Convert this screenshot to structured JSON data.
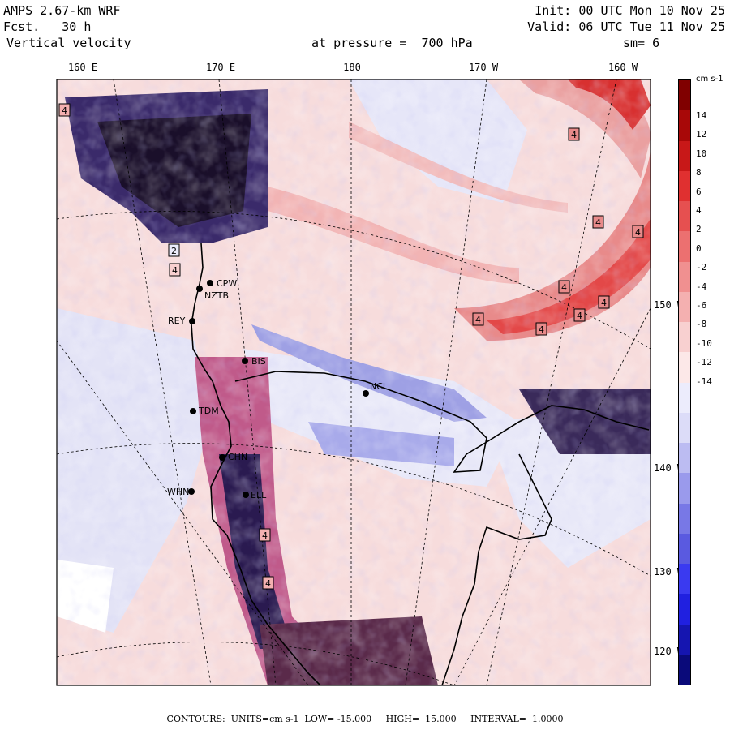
{
  "header": {
    "model": "AMPS 2.67-km WRF",
    "fcst_label": "Fcst.",
    "fcst_value": "30 h",
    "field": "Vertical velocity",
    "init": "Init: 00 UTC Mon 10 Nov 25",
    "valid": "Valid: 06 UTC Tue 11 Nov 25",
    "pressure": "at pressure =  700 hPa",
    "smooth": "sm= 6"
  },
  "longitudes": [
    "160 E",
    "170 E",
    "180",
    "170 W",
    "160 W"
  ],
  "latitudes": [
    "150 W",
    "140 W",
    "130 W",
    "120 W"
  ],
  "colorbar": {
    "units": "cm s-1",
    "ticks": [
      "14",
      "12",
      "10",
      "8",
      "6",
      "4",
      "2",
      "0",
      "-2",
      "-4",
      "-6",
      "-8",
      "-10",
      "-12",
      "-14"
    ],
    "colors": [
      "#0a0a7a",
      "#1515b0",
      "#2020e0",
      "#3a3af0",
      "#5a5ae0",
      "#7878e6",
      "#9a9aec",
      "#bcbcf2",
      "#dcdcf8",
      "#ececfc",
      "#fce8e8",
      "#f8d0d0",
      "#f4b0b0",
      "#f09090",
      "#ec7070",
      "#e65050",
      "#e03030",
      "#c81818",
      "#a80808",
      "#800000"
    ]
  },
  "stations": [
    "CPW",
    "NZTB",
    "REY",
    "BIS",
    "NCL",
    "TDM",
    "CHN",
    "WHN",
    "ELL"
  ],
  "contour_labels": [
    "4",
    "4",
    "2",
    "4",
    "4",
    "4",
    "4",
    "4",
    "4",
    "4",
    "4",
    "4",
    "4"
  ],
  "footer": {
    "contours": "CONTOURS:",
    "units": "UNITS=cm s-1",
    "low": "LOW= -15.000",
    "high": "HIGH=  15.000",
    "interval": "INTERVAL=  1.0000"
  }
}
